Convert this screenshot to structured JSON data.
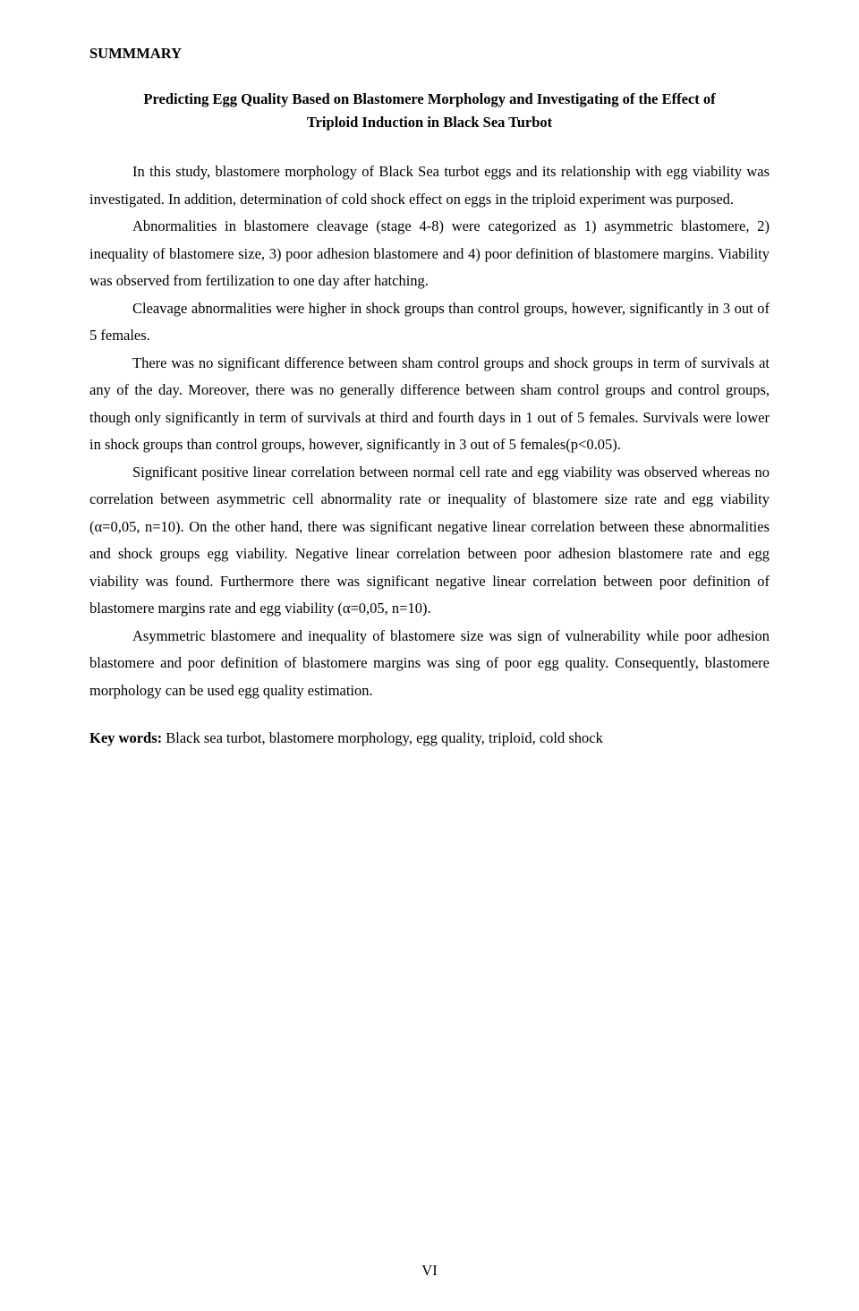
{
  "heading": "SUMMMARY",
  "title": "Predicting Egg Quality Based on Blastomere Morphology and Investigating of the Effect of Triploid Induction in Black Sea Turbot",
  "paragraphs": [
    "In this study, blastomere morphology of Black Sea turbot eggs and its relationship with egg viability was investigated. In addition, determination of cold shock effect on eggs in the triploid experiment was purposed.",
    "Abnormalities in blastomere cleavage (stage 4-8) were categorized as 1) asymmetric blastomere, 2) inequality of blastomere size, 3) poor adhesion blastomere and 4) poor definition of blastomere margins. Viability was observed from fertilization to one day after hatching.",
    "Cleavage abnormalities were higher in shock groups than control groups, however, significantly in 3 out of 5 females.",
    "There was no significant difference between sham control groups and shock groups in term of survivals at any of the day. Moreover, there was no generally difference between sham control groups and control groups, though only significantly in term of survivals at third and fourth days in 1 out of 5 females. Survivals were lower in shock groups than control groups, however, significantly in 3 out of 5 females(p<0.05).",
    "Significant positive linear correlation between normal cell rate and egg viability was observed whereas no correlation between asymmetric cell abnormality rate or inequality of blastomere size rate and egg viability (α=0,05, n=10). On the other hand, there was significant negative linear correlation between these abnormalities and shock groups egg viability. Negative linear correlation between poor adhesion blastomere rate and egg viability was found. Furthermore there was significant negative linear correlation between poor definition of blastomere margins rate and egg viability (α=0,05, n=10).",
    "Asymmetric blastomere and inequality of blastomere size was sign of vulnerability while poor adhesion blastomere and poor definition of blastomere margins was sing of poor egg quality. Consequently, blastomere morphology can be used egg quality estimation."
  ],
  "keywords_label": "Key words:",
  "keywords_text": " Black sea turbot, blastomere morphology, egg quality, triploid, cold shock",
  "page_number": "VI",
  "colors": {
    "background": "#ffffff",
    "text": "#000000"
  },
  "typography": {
    "font_family": "Times New Roman",
    "body_fontsize": 16.5,
    "heading_fontsize": 16.5,
    "line_height": 1.85,
    "text_indent": 48
  }
}
